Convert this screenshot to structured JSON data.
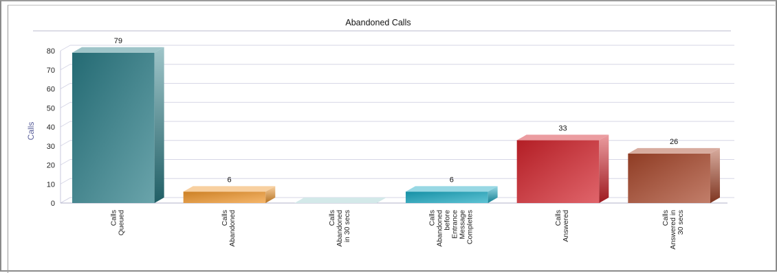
{
  "chart_data": {
    "type": "bar",
    "title": "Abandoned Calls",
    "xlabel": "",
    "ylabel": "Calls",
    "ylim": [
      0,
      80
    ],
    "yticks": [
      0,
      10,
      20,
      30,
      40,
      50,
      60,
      70,
      80
    ],
    "grid": true,
    "legend": "none",
    "categories": [
      [
        "Calls",
        "Queued"
      ],
      [
        "Calls",
        "Abandoned"
      ],
      [
        "Calls",
        "Abandoned",
        "in 30 secs"
      ],
      [
        "Calls",
        "Abandoned",
        "before",
        "Entrance",
        "Message",
        "Completes"
      ],
      [
        "Calls",
        "Answered"
      ],
      [
        "Calls",
        "Answered in",
        "30 secs"
      ]
    ],
    "values": [
      79,
      6,
      0,
      6,
      33,
      26
    ],
    "data_labels": [
      "79",
      "6",
      "",
      "6",
      "33",
      "26"
    ],
    "colors": [
      "#2a7d87",
      "#f0962c",
      "#9ecfcf",
      "#1aa9c2",
      "#d3232b",
      "#a8472a"
    ]
  }
}
